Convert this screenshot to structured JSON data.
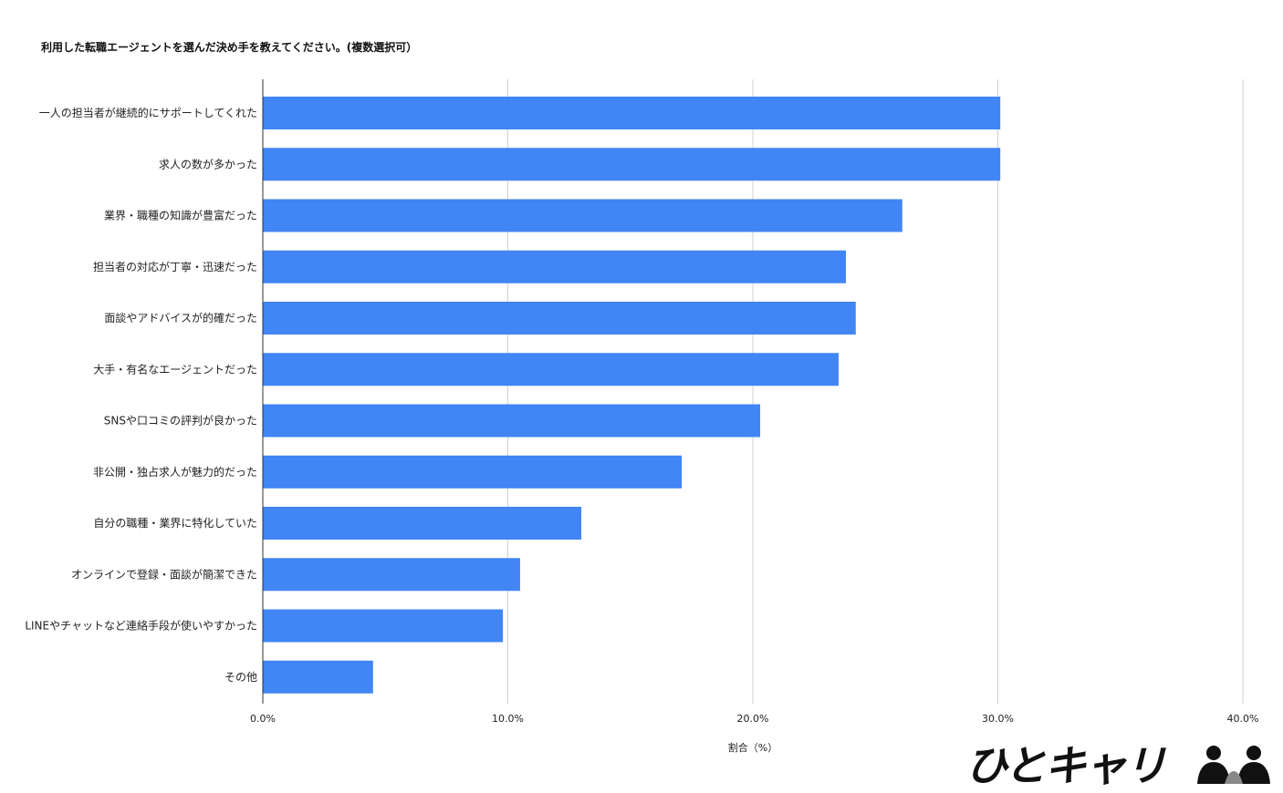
{
  "chart_data": {
    "type": "bar",
    "orientation": "horizontal",
    "title": "利用した転職エージェントを選んだ決め手を教えてください。(複数選択可）",
    "xlabel": "割合（%）",
    "ylabel": "",
    "xlim": [
      0,
      40
    ],
    "ticks": [
      0,
      10,
      20,
      30,
      40
    ],
    "tick_labels": [
      "0.0%",
      "10.0%",
      "20.0%",
      "30.0%",
      "40.0%"
    ],
    "grid": true,
    "bar_color": "#4285F4",
    "categories": [
      "一人の担当者が継続的にサポートしてくれた",
      "求人の数が多かった",
      "業界・職種の知識が豊富だった",
      "担当者の対応が丁寧・迅速だった",
      "面談やアドバイスが的確だった",
      "大手・有名なエージェントだった",
      "SNSや口コミの評判が良かった",
      "非公開・独占求人が魅力的だった",
      "自分の職種・業界に特化していた",
      "オンラインで登録・面談が簡潔できた",
      "LINEやチャットなど連絡手段が使いやすかった",
      "その他"
    ],
    "values": [
      30.1,
      30.1,
      26.1,
      23.8,
      24.2,
      23.5,
      20.3,
      17.1,
      13.0,
      10.5,
      9.8,
      4.5
    ]
  },
  "logo": {
    "text": "ひとキャリ",
    "icon": "two-people-icon"
  }
}
